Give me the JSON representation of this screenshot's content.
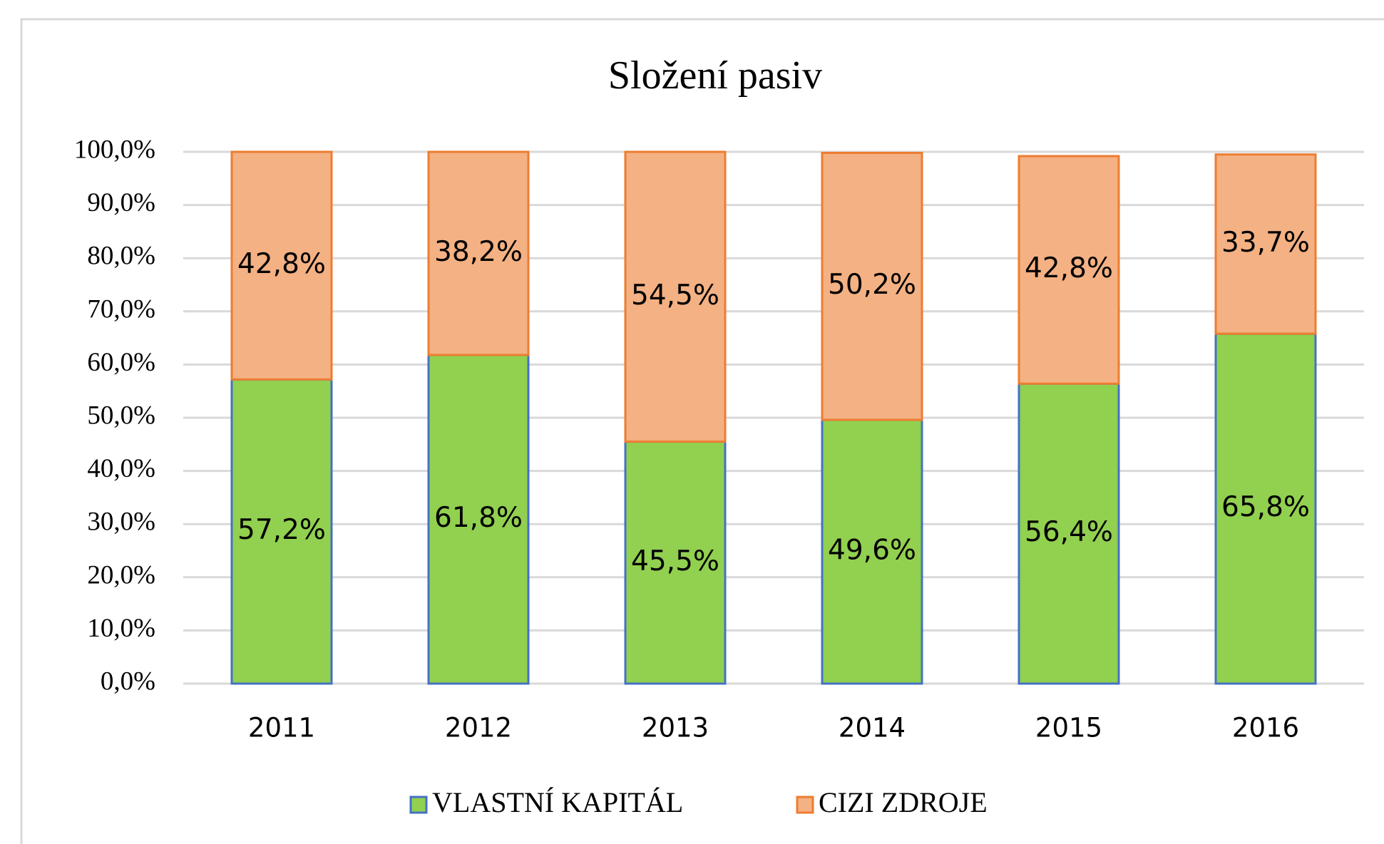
{
  "chart_data": {
    "type": "stacked_bar",
    "title": "Složení pasiv",
    "categories": [
      "2011",
      "2012",
      "2013",
      "2014",
      "2015",
      "2016"
    ],
    "series": [
      {
        "name": "VLASTNÍ KAPITÁL",
        "color": "#92d050",
        "edge": "#4472c4",
        "values": [
          57.2,
          61.8,
          45.5,
          49.6,
          56.4,
          65.8
        ],
        "value_labels": [
          "57,2%",
          "61,8%",
          "45,5%",
          "49,6%",
          "56,4%",
          "65,8%"
        ]
      },
      {
        "name": "CIZI ZDROJE",
        "color": "#f4b183",
        "edge": "#ed7d31",
        "values": [
          42.8,
          38.2,
          54.5,
          50.2,
          42.8,
          33.7
        ],
        "value_labels": [
          "42,8%",
          "38,2%",
          "54,5%",
          "50,2%",
          "42,8%",
          "33,7%"
        ]
      }
    ],
    "ylim": [
      0,
      100
    ],
    "yticks": [
      {
        "value": 0,
        "label": "0,0%"
      },
      {
        "value": 10,
        "label": "10,0%"
      },
      {
        "value": 20,
        "label": "20,0%"
      },
      {
        "value": 30,
        "label": "30,0%"
      },
      {
        "value": 40,
        "label": "40,0%"
      },
      {
        "value": 50,
        "label": "50,0%"
      },
      {
        "value": 60,
        "label": "60,0%"
      },
      {
        "value": 70,
        "label": "70,0%"
      },
      {
        "value": 80,
        "label": "80,0%"
      },
      {
        "value": 90,
        "label": "90,0%"
      },
      {
        "value": 100,
        "label": "100,0%"
      }
    ],
    "grid": true,
    "legend": "bottom"
  }
}
